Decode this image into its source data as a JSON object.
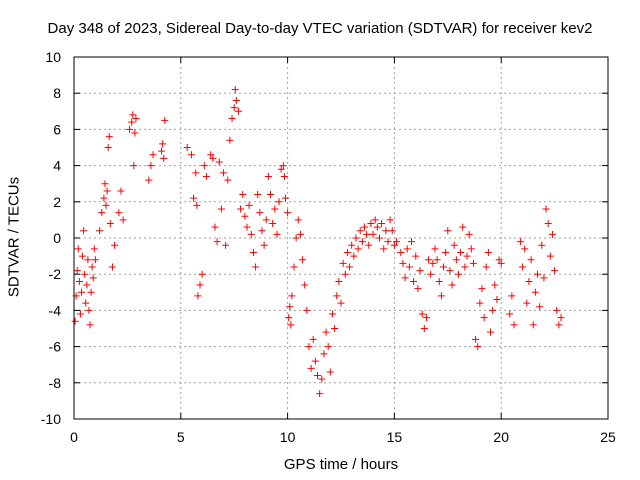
{
  "chart_data": {
    "type": "scatter",
    "title": "Day 348 of 2023, Sidereal Day-to-day VTEC variation (SDTVAR) for receiver kev2",
    "xlabel": "GPS time / hours",
    "ylabel": "SDTVAR / TECUs",
    "xlim": [
      0,
      25
    ],
    "ylim": [
      -10,
      10
    ],
    "xticks": [
      0,
      5,
      10,
      15,
      20,
      25
    ],
    "yticks": [
      -10,
      -8,
      -6,
      -4,
      -2,
      0,
      2,
      4,
      6,
      8,
      10
    ],
    "grid": true,
    "marker": "+",
    "color": "#ff0000",
    "series": [
      {
        "name": "SDTVAR",
        "points": [
          [
            0.05,
            -4.6
          ],
          [
            0.1,
            -3.2
          ],
          [
            0.15,
            -1.8
          ],
          [
            0.2,
            -0.6
          ],
          [
            0.25,
            -2.4
          ],
          [
            0.3,
            -4.2
          ],
          [
            0.35,
            -3.0
          ],
          [
            0.4,
            -1.0
          ],
          [
            0.45,
            0.4
          ],
          [
            0.5,
            -2.0
          ],
          [
            0.55,
            -3.6
          ],
          [
            0.6,
            -2.6
          ],
          [
            0.65,
            -1.2
          ],
          [
            0.7,
            -4.0
          ],
          [
            0.75,
            -4.8
          ],
          [
            0.8,
            -3.0
          ],
          [
            0.85,
            -1.6
          ],
          [
            0.9,
            -2.2
          ],
          [
            0.95,
            -0.6
          ],
          [
            1.0,
            -1.2
          ],
          [
            1.2,
            0.4
          ],
          [
            1.3,
            1.4
          ],
          [
            1.4,
            2.2
          ],
          [
            1.45,
            3.0
          ],
          [
            1.5,
            1.8
          ],
          [
            1.55,
            2.6
          ],
          [
            1.6,
            5.0
          ],
          [
            1.65,
            5.6
          ],
          [
            1.7,
            0.8
          ],
          [
            1.8,
            -1.6
          ],
          [
            1.9,
            -0.4
          ],
          [
            2.1,
            1.4
          ],
          [
            2.2,
            2.6
          ],
          [
            2.3,
            1.0
          ],
          [
            2.6,
            6.0
          ],
          [
            2.7,
            6.4
          ],
          [
            2.75,
            6.8
          ],
          [
            2.8,
            4.0
          ],
          [
            2.85,
            5.8
          ],
          [
            2.9,
            6.6
          ],
          [
            3.5,
            3.2
          ],
          [
            3.6,
            4.0
          ],
          [
            3.7,
            4.6
          ],
          [
            4.1,
            4.8
          ],
          [
            4.15,
            5.2
          ],
          [
            4.2,
            4.4
          ],
          [
            4.25,
            6.5
          ],
          [
            5.3,
            5.0
          ],
          [
            5.5,
            4.6
          ],
          [
            5.6,
            2.2
          ],
          [
            5.7,
            3.6
          ],
          [
            5.75,
            1.8
          ],
          [
            5.8,
            -3.2
          ],
          [
            5.9,
            -2.6
          ],
          [
            6.0,
            -2.0
          ],
          [
            6.1,
            4.0
          ],
          [
            6.2,
            3.4
          ],
          [
            6.4,
            4.6
          ],
          [
            6.5,
            4.4
          ],
          [
            6.6,
            0.6
          ],
          [
            6.7,
            -0.2
          ],
          [
            6.8,
            4.2
          ],
          [
            6.9,
            1.6
          ],
          [
            7.0,
            3.6
          ],
          [
            7.1,
            -0.4
          ],
          [
            7.2,
            3.2
          ],
          [
            7.3,
            5.4
          ],
          [
            7.4,
            6.6
          ],
          [
            7.5,
            7.2
          ],
          [
            7.55,
            8.2
          ],
          [
            7.6,
            7.6
          ],
          [
            7.7,
            7.0
          ],
          [
            7.8,
            1.6
          ],
          [
            7.9,
            2.4
          ],
          [
            8.0,
            1.2
          ],
          [
            8.1,
            0.6
          ],
          [
            8.2,
            1.8
          ],
          [
            8.3,
            0.2
          ],
          [
            8.4,
            -0.8
          ],
          [
            8.5,
            -1.6
          ],
          [
            8.6,
            2.4
          ],
          [
            8.7,
            1.4
          ],
          [
            8.8,
            0.4
          ],
          [
            8.9,
            -0.4
          ],
          [
            9.0,
            1.0
          ],
          [
            9.1,
            3.4
          ],
          [
            9.2,
            2.4
          ],
          [
            9.3,
            0.8
          ],
          [
            9.4,
            1.6
          ],
          [
            9.5,
            0.2
          ],
          [
            9.6,
            2.0
          ],
          [
            9.7,
            3.8
          ],
          [
            9.8,
            4.0
          ],
          [
            9.85,
            3.4
          ],
          [
            9.9,
            2.2
          ],
          [
            10.0,
            1.4
          ],
          [
            10.05,
            -4.4
          ],
          [
            10.1,
            -3.8
          ],
          [
            10.15,
            -4.8
          ],
          [
            10.2,
            -3.2
          ],
          [
            10.3,
            -1.6
          ],
          [
            10.4,
            0.0
          ],
          [
            10.5,
            1.0
          ],
          [
            10.6,
            0.2
          ],
          [
            10.7,
            -1.2
          ],
          [
            10.8,
            -2.6
          ],
          [
            10.9,
            -4.0
          ],
          [
            11.0,
            -6.0
          ],
          [
            11.1,
            -7.2
          ],
          [
            11.2,
            -5.6
          ],
          [
            11.3,
            -6.8
          ],
          [
            11.4,
            -7.6
          ],
          [
            11.5,
            -8.6
          ],
          [
            11.6,
            -7.8
          ],
          [
            11.7,
            -6.4
          ],
          [
            11.8,
            -5.2
          ],
          [
            11.9,
            -6.0
          ],
          [
            12.0,
            -7.4
          ],
          [
            12.1,
            -4.2
          ],
          [
            12.2,
            -5.0
          ],
          [
            12.3,
            -3.2
          ],
          [
            12.4,
            -2.4
          ],
          [
            12.5,
            -3.6
          ],
          [
            12.6,
            -1.4
          ],
          [
            12.7,
            -2.0
          ],
          [
            12.8,
            -0.8
          ],
          [
            12.9,
            -1.6
          ],
          [
            13.0,
            -0.4
          ],
          [
            13.1,
            -1.0
          ],
          [
            13.2,
            0.0
          ],
          [
            13.3,
            -0.6
          ],
          [
            13.4,
            0.4
          ],
          [
            13.5,
            -0.2
          ],
          [
            13.6,
            0.6
          ],
          [
            13.7,
            0.2
          ],
          [
            13.8,
            -0.4
          ],
          [
            13.9,
            0.8
          ],
          [
            14.0,
            0.2
          ],
          [
            14.1,
            1.0
          ],
          [
            14.2,
            0.6
          ],
          [
            14.3,
            0.0
          ],
          [
            14.4,
            0.8
          ],
          [
            14.5,
            -0.6
          ],
          [
            14.6,
            0.4
          ],
          [
            14.7,
            -0.2
          ],
          [
            14.8,
            1.0
          ],
          [
            14.9,
            0.4
          ],
          [
            15.0,
            -0.4
          ],
          [
            15.1,
            -0.2
          ],
          [
            15.3,
            -0.8
          ],
          [
            15.4,
            -1.4
          ],
          [
            15.5,
            -2.2
          ],
          [
            15.6,
            -0.6
          ],
          [
            15.7,
            -1.6
          ],
          [
            15.8,
            -0.2
          ],
          [
            15.9,
            -2.4
          ],
          [
            16.0,
            -1.0
          ],
          [
            16.1,
            -2.8
          ],
          [
            16.2,
            -1.8
          ],
          [
            16.3,
            -4.2
          ],
          [
            16.4,
            -5.0
          ],
          [
            16.5,
            -4.4
          ],
          [
            16.6,
            -1.2
          ],
          [
            16.7,
            -2.0
          ],
          [
            16.8,
            -1.4
          ],
          [
            16.9,
            -0.6
          ],
          [
            17.0,
            -1.2
          ],
          [
            17.1,
            -2.4
          ],
          [
            17.2,
            -3.2
          ],
          [
            17.3,
            -1.6
          ],
          [
            17.4,
            -0.8
          ],
          [
            17.5,
            0.4
          ],
          [
            17.6,
            -1.8
          ],
          [
            17.7,
            -2.6
          ],
          [
            17.8,
            -0.4
          ],
          [
            17.9,
            -1.2
          ],
          [
            18.0,
            -2.0
          ],
          [
            18.1,
            -0.8
          ],
          [
            18.2,
            0.6
          ],
          [
            18.3,
            -1.6
          ],
          [
            18.4,
            -1.0
          ],
          [
            18.5,
            0.2
          ],
          [
            18.6,
            -0.6
          ],
          [
            18.7,
            -1.4
          ],
          [
            18.8,
            -5.6
          ],
          [
            18.9,
            -6.0
          ],
          [
            19.0,
            -3.6
          ],
          [
            19.1,
            -2.8
          ],
          [
            19.2,
            -4.4
          ],
          [
            19.3,
            -1.6
          ],
          [
            19.4,
            -0.8
          ],
          [
            19.5,
            -5.2
          ],
          [
            19.6,
            -4.0
          ],
          [
            19.7,
            -2.6
          ],
          [
            19.8,
            -3.4
          ],
          [
            19.9,
            -1.2
          ],
          [
            20.0,
            -1.4
          ],
          [
            20.4,
            -4.2
          ],
          [
            20.5,
            -3.2
          ],
          [
            20.6,
            -4.8
          ],
          [
            20.9,
            -0.2
          ],
          [
            21.0,
            -1.6
          ],
          [
            21.1,
            -0.6
          ],
          [
            21.2,
            -3.6
          ],
          [
            21.3,
            -2.4
          ],
          [
            21.4,
            -1.2
          ],
          [
            21.5,
            -4.8
          ],
          [
            21.6,
            -3.0
          ],
          [
            21.7,
            -2.0
          ],
          [
            21.8,
            -3.8
          ],
          [
            21.9,
            -0.4
          ],
          [
            22.0,
            -2.2
          ],
          [
            22.1,
            1.6
          ],
          [
            22.2,
            0.8
          ],
          [
            22.3,
            -1.0
          ],
          [
            22.4,
            0.2
          ],
          [
            22.5,
            -1.8
          ],
          [
            22.6,
            -4.0
          ],
          [
            22.7,
            -4.8
          ],
          [
            22.8,
            -4.4
          ]
        ]
      }
    ]
  }
}
